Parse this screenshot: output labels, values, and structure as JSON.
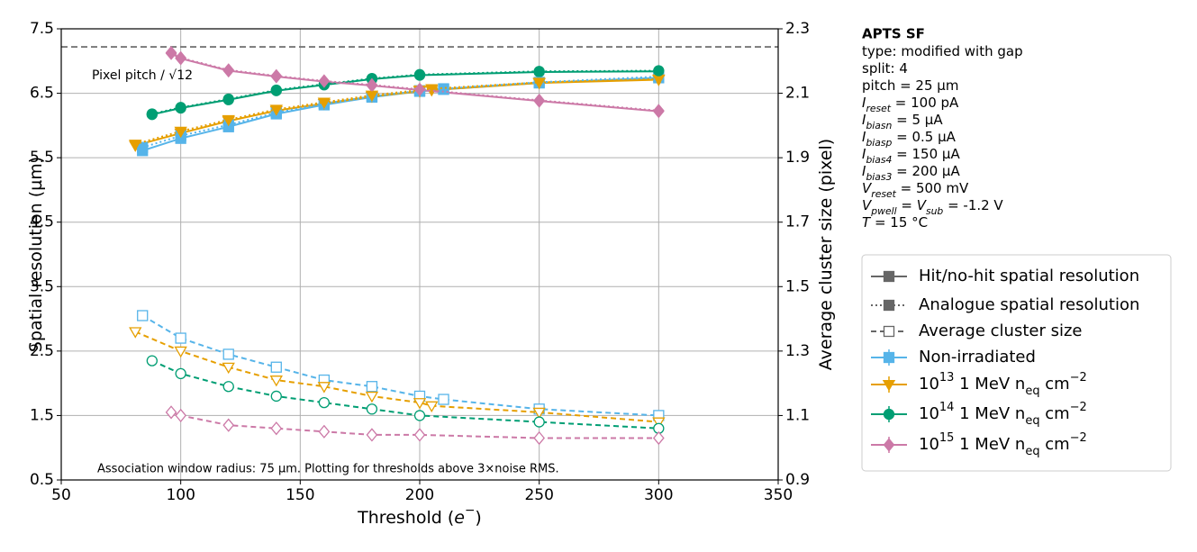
{
  "chart_data": {
    "type": "line",
    "x_label": [
      "Threshold (",
      {
        "t": "e",
        "s": "i"
      },
      {
        "t": "−",
        "s": "sup"
      },
      ")"
    ],
    "y_label": [
      "Spatial resolution (µm)"
    ],
    "y2_label": [
      "Average cluster size (pixel)"
    ],
    "xlim": [
      50,
      350
    ],
    "xticks": [
      50,
      100,
      150,
      200,
      250,
      300,
      350
    ],
    "ylim": [
      0.5,
      7.5
    ],
    "yticks": [
      0.5,
      1.5,
      2.5,
      3.5,
      4.5,
      5.5,
      6.5,
      7.5
    ],
    "y2lim": [
      0.9,
      2.3
    ],
    "y2ticks": [
      0.9,
      1.1,
      1.3,
      1.5,
      1.7,
      1.9,
      2.1,
      2.3
    ],
    "grid": true,
    "footnote": "Association window radius: 75 µm. Plotting for thresholds above 3×noise RMS.",
    "reference_line": {
      "value": 7.22,
      "label": "Pixel pitch / √12",
      "color": "#777777"
    },
    "styles": [
      {
        "name": "Hit/no-hit spatial resolution",
        "key": "hit",
        "line": "solid",
        "filled": true,
        "axis": "y"
      },
      {
        "name": "Analogue spatial resolution",
        "key": "analogue",
        "line": "dotted",
        "filled": true,
        "axis": "y"
      },
      {
        "name": "Average cluster size",
        "key": "cluster",
        "line": "dashed",
        "filled": false,
        "axis": "y2"
      }
    ],
    "series": [
      {
        "name": [
          "Non-irradiated"
        ],
        "color": "#56b4e9",
        "marker": "square",
        "x": [
          84,
          100,
          120,
          140,
          160,
          180,
          200,
          210,
          250,
          300
        ],
        "hit": [
          5.61,
          5.8,
          5.98,
          6.18,
          6.32,
          6.44,
          6.53,
          6.56,
          6.66,
          6.74
        ],
        "analogue": [
          5.66,
          5.84,
          6.01,
          6.2,
          6.34,
          6.45,
          6.54,
          6.57,
          6.67,
          6.76
        ],
        "cluster": [
          1.41,
          1.34,
          1.29,
          1.25,
          1.21,
          1.19,
          1.16,
          1.15,
          1.12,
          1.1
        ]
      },
      {
        "name": [
          "10",
          {
            "t": "13",
            "s": "sup"
          },
          " 1 MeV n",
          {
            "t": "eq",
            "s": "sub"
          },
          " cm",
          {
            "t": "−2",
            "s": "sup"
          }
        ],
        "color": "#e69f00",
        "marker": "triangle-down",
        "x": [
          81,
          100,
          120,
          140,
          160,
          180,
          200,
          205,
          250,
          300
        ],
        "hit": [
          5.69,
          5.88,
          6.07,
          6.23,
          6.34,
          6.45,
          6.53,
          6.55,
          6.66,
          6.71
        ],
        "analogue": [
          5.71,
          5.91,
          6.09,
          6.25,
          6.36,
          6.47,
          6.55,
          6.57,
          6.67,
          6.72
        ],
        "cluster": [
          1.36,
          1.3,
          1.25,
          1.21,
          1.19,
          1.16,
          1.14,
          1.13,
          1.11,
          1.08
        ]
      },
      {
        "name": [
          "10",
          {
            "t": "14",
            "s": "sup"
          },
          " 1 MeV n",
          {
            "t": "eq",
            "s": "sub"
          },
          " cm",
          {
            "t": "−2",
            "s": "sup"
          }
        ],
        "color": "#009e73",
        "marker": "circle",
        "x": [
          88,
          100,
          120,
          140,
          160,
          180,
          200,
          250,
          300
        ],
        "hit": [
          6.17,
          6.27,
          6.4,
          6.54,
          6.63,
          6.72,
          6.78,
          6.83,
          6.84
        ],
        "analogue": [
          6.18,
          6.28,
          6.41,
          6.55,
          6.64,
          6.73,
          6.79,
          6.84,
          6.85
        ],
        "cluster": [
          1.27,
          1.23,
          1.19,
          1.16,
          1.14,
          1.12,
          1.1,
          1.08,
          1.06
        ]
      },
      {
        "name": [
          "10",
          {
            "t": "15",
            "s": "sup"
          },
          " 1 MeV n",
          {
            "t": "eq",
            "s": "sub"
          },
          " cm",
          {
            "t": "−2",
            "s": "sup"
          }
        ],
        "color": "#cc79a7",
        "marker": "diamond",
        "x": [
          96,
          100,
          120,
          140,
          160,
          180,
          200,
          250,
          300
        ],
        "hit": [
          7.12,
          7.04,
          6.85,
          6.76,
          6.68,
          6.62,
          6.55,
          6.38,
          6.22
        ],
        "analogue": [
          7.13,
          7.05,
          6.86,
          6.77,
          6.69,
          6.63,
          6.56,
          6.39,
          6.23
        ],
        "cluster": [
          1.11,
          1.1,
          1.07,
          1.06,
          1.05,
          1.04,
          1.04,
          1.03,
          1.03
        ]
      }
    ]
  },
  "info": {
    "title": "APTS SF",
    "lines": [
      [
        "type: modified with gap"
      ],
      [
        "split:  4"
      ],
      [
        "pitch = 25 µm"
      ],
      [
        {
          "t": "I",
          "s": "i"
        },
        {
          "t": "reset",
          "s": "isub"
        },
        " = 100 pA"
      ],
      [
        {
          "t": "I",
          "s": "i"
        },
        {
          "t": "biasn",
          "s": "isub"
        },
        " = 5 µA"
      ],
      [
        {
          "t": "I",
          "s": "i"
        },
        {
          "t": "biasp",
          "s": "isub"
        },
        " = 0.5 µA"
      ],
      [
        {
          "t": "I",
          "s": "i"
        },
        {
          "t": "bias4",
          "s": "isub"
        },
        " = 150 µA"
      ],
      [
        {
          "t": "I",
          "s": "i"
        },
        {
          "t": "bias3",
          "s": "isub"
        },
        " = 200 µA"
      ],
      [
        {
          "t": "V",
          "s": "i"
        },
        {
          "t": "reset",
          "s": "isub"
        },
        " = 500 mV"
      ],
      [
        {
          "t": "V",
          "s": "i"
        },
        {
          "t": "pwell",
          "s": "isub"
        },
        " = ",
        {
          "t": "V",
          "s": "i"
        },
        {
          "t": "sub",
          "s": "isub"
        },
        " = -1.2 V"
      ],
      [
        {
          "t": "T",
          "s": "i"
        },
        " = 15 °C"
      ]
    ]
  }
}
